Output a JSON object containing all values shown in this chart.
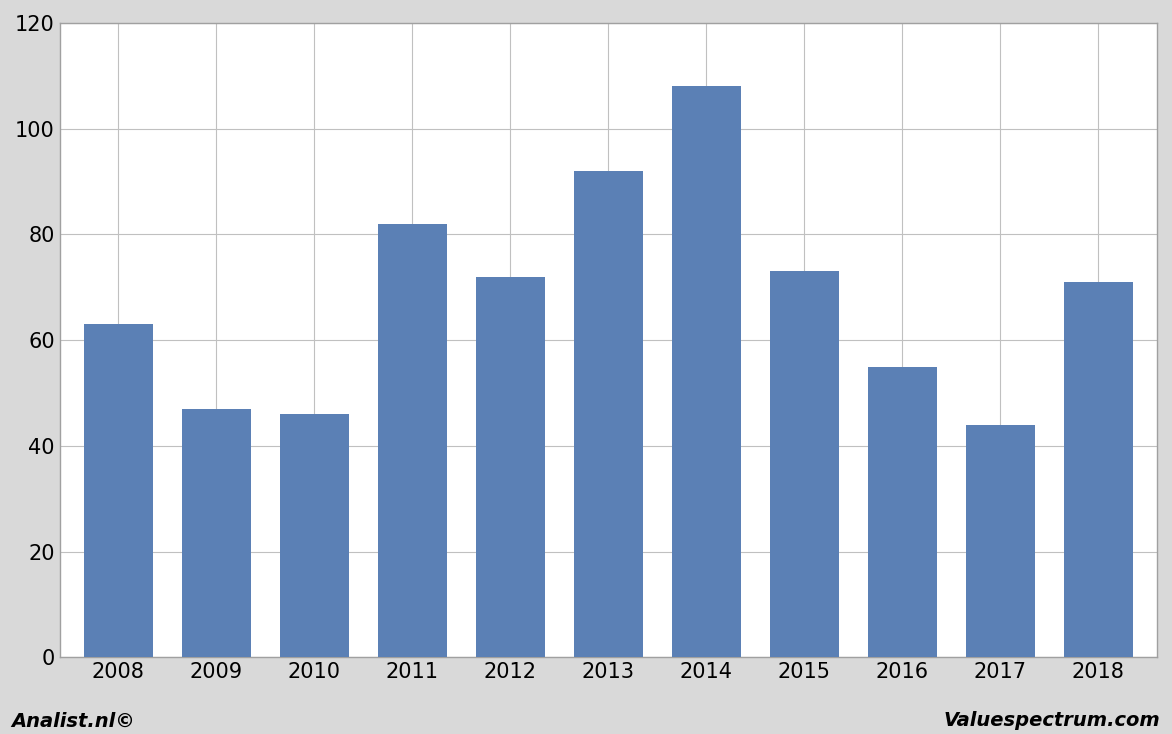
{
  "categories": [
    "2008",
    "2009",
    "2010",
    "2011",
    "2012",
    "2013",
    "2014",
    "2015",
    "2016",
    "2017",
    "2018"
  ],
  "values": [
    63,
    47,
    46,
    82,
    72,
    92,
    108,
    73,
    55,
    44,
    71
  ],
  "bar_color": "#5b80b5",
  "background_color": "#d9d9d9",
  "plot_background_color": "#ffffff",
  "ylim": [
    0,
    120
  ],
  "yticks": [
    0,
    20,
    40,
    60,
    80,
    100,
    120
  ],
  "grid_color": "#c0c0c0",
  "border_color": "#a0a0a0",
  "footer_left": "Analist.nl©",
  "footer_right": "Valuespectrum.com",
  "footer_fontsize": 14,
  "tick_fontsize": 15,
  "bar_width": 0.7
}
